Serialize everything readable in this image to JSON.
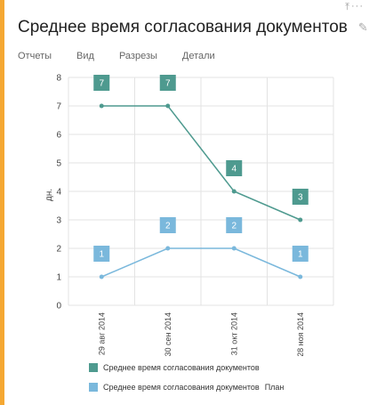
{
  "title": "Среднее время согласования документов",
  "menu": [
    {
      "label": "Отчеты"
    },
    {
      "label": "Вид"
    },
    {
      "label": "Разрезы"
    },
    {
      "label": "Детали"
    }
  ],
  "icons": {
    "pin": "pin-icon",
    "more": "more-icon",
    "edit": "pencil-icon"
  },
  "colors": {
    "accent": "#f5a833",
    "series1": "#4e9a8f",
    "series2": "#7ab8dc"
  },
  "chart_data": {
    "type": "line",
    "title": "",
    "xlabel": "",
    "ylabel": "дн.",
    "ylim": [
      0,
      8
    ],
    "yticks": [
      0,
      1,
      2,
      3,
      4,
      5,
      6,
      7,
      8
    ],
    "grid": true,
    "legend_position": "bottom",
    "categories": [
      "29 авг 2014",
      "30 сен 2014",
      "31 окт 2014",
      "28 ноя 2014"
    ],
    "series": [
      {
        "name": "Среднее время согласования документов",
        "suffix": "",
        "color": "#4e9a8f",
        "values": [
          7,
          7,
          4,
          3
        ],
        "data_labels": [
          "7",
          "7",
          "4",
          "3"
        ]
      },
      {
        "name": "Среднее время согласования документов",
        "suffix": "План",
        "color": "#7ab8dc",
        "values": [
          1,
          2,
          2,
          1
        ],
        "data_labels": [
          "1",
          "2",
          "2",
          "1"
        ]
      }
    ]
  }
}
